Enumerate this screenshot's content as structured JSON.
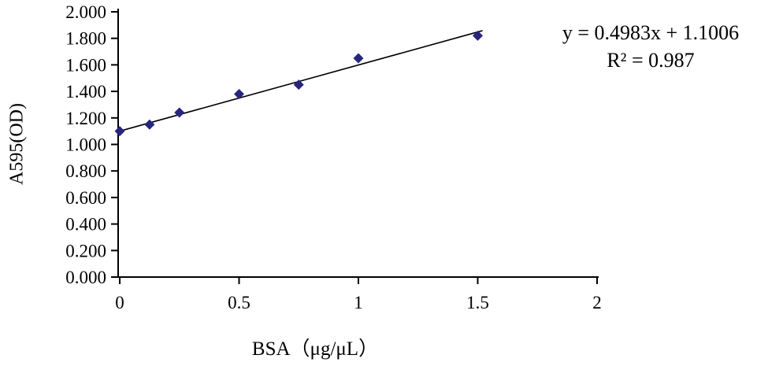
{
  "chart_data": {
    "type": "scatter",
    "title": "",
    "xlabel": "BSA（μg/μL）",
    "ylabel": "A595(OD)",
    "xlim": [
      0,
      2
    ],
    "ylim": [
      0,
      2
    ],
    "grid": false,
    "legend": false,
    "marker": "diamond",
    "x": [
      0,
      0.125,
      0.25,
      0.5,
      0.75,
      1,
      1.5
    ],
    "y": [
      1.1,
      1.15,
      1.24,
      1.38,
      1.45,
      1.65,
      1.82
    ],
    "trendline": {
      "slope": 0.4983,
      "intercept": 1.1006,
      "x_start": 0,
      "x_end": 1.52
    },
    "equation": "y = 0.4983x + 1.1006",
    "r_squared": "R² = 0.987",
    "x_ticks": {
      "values": [
        0,
        0.5,
        1,
        1.5,
        2
      ],
      "labels": [
        "0",
        "0.5",
        "1",
        "1.5",
        "2"
      ]
    },
    "y_ticks": {
      "values": [
        0,
        0.2,
        0.4,
        0.6,
        0.8,
        1.0,
        1.2,
        1.4,
        1.6,
        1.8,
        2.0
      ],
      "labels": [
        "0.000",
        "0.200",
        "0.400",
        "0.600",
        "0.800",
        "1.000",
        "1.200",
        "1.400",
        "1.600",
        "1.800",
        "2.000"
      ]
    },
    "colors": {
      "marker": "#26267e",
      "trendline": "#000000",
      "axis": "#000000",
      "text": "#000000",
      "background": "#ffffff"
    }
  }
}
